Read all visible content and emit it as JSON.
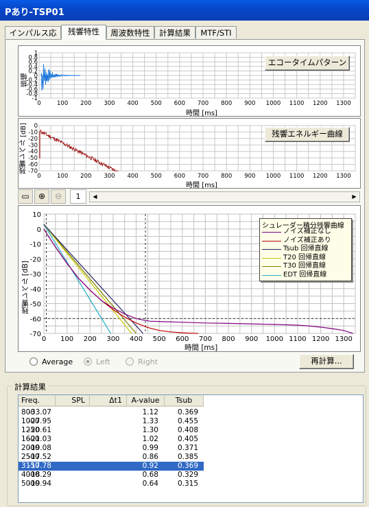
{
  "window": {
    "title": "Pあり-TSP01"
  },
  "tabs": [
    {
      "label": "インパルス応答",
      "active": false
    },
    {
      "label": "残響特性",
      "active": true
    },
    {
      "label": "周波数特性",
      "active": false
    },
    {
      "label": "計算結果",
      "active": false
    },
    {
      "label": "MTF/STI",
      "active": false
    }
  ],
  "echo_panel": {
    "button": "エコータイムパターン",
    "ylabel": "振幅",
    "xlabel": "時間 [ms]",
    "yticks": [
      "1",
      "0.8",
      "0.6",
      "0.4",
      "0.2",
      "0",
      "-0.2",
      "-0.4",
      "-0.6",
      "-0.8",
      "-1"
    ],
    "xticks": [
      "0",
      "100",
      "200",
      "300",
      "400",
      "500",
      "600",
      "700",
      "800",
      "900",
      "1000",
      "1100",
      "1200",
      "1300"
    ]
  },
  "energy_panel": {
    "button": "残響エネルギー曲線",
    "ylabel": "残響レベル [dB]",
    "xlabel": "時間 [ms]",
    "yticks": [
      "0",
      "-10",
      "-20",
      "-30",
      "-40",
      "-50",
      "-60",
      "-70"
    ],
    "xticks": [
      "0",
      "100",
      "200",
      "300",
      "400",
      "500",
      "600",
      "700",
      "800",
      "900",
      "1000",
      "1100",
      "1200",
      "1300"
    ]
  },
  "toolbar": {
    "page": "1"
  },
  "chart_data": {
    "type": "line",
    "ylabel": "残響レベル [dB]",
    "xlabel": "時間 [ms]",
    "xlim": [
      0,
      1350
    ],
    "ylim": [
      -70,
      10
    ],
    "xticks": [
      "0",
      "100",
      "200",
      "300",
      "400",
      "500",
      "600",
      "700",
      "800",
      "900",
      "1000",
      "1100",
      "1200",
      "1300"
    ],
    "yticks": [
      "10",
      "0",
      "-10",
      "-20",
      "-30",
      "-40",
      "-50",
      "-60",
      "-70"
    ],
    "grid": true,
    "legend_title": "シュレーダー積分残響曲線",
    "legend_position": "top-right",
    "series": [
      {
        "name": "ノイズ補正なし",
        "color": "#800080",
        "x": [
          0,
          20,
          50,
          100,
          150,
          200,
          250,
          300,
          350,
          400,
          430,
          460,
          500,
          600,
          700,
          800,
          900,
          1000,
          1100,
          1150,
          1200,
          1250,
          1300,
          1340
        ],
        "y": [
          0,
          -5,
          -12,
          -23,
          -33,
          -41,
          -48,
          -53,
          -57,
          -60,
          -61,
          -61.8,
          -62,
          -62.5,
          -63,
          -63.3,
          -63.6,
          -64,
          -64.5,
          -65,
          -65.8,
          -66.8,
          -68,
          -70
        ]
      },
      {
        "name": "ノイズ補正あり",
        "color": "#c00000",
        "x": [
          0,
          20,
          50,
          100,
          150,
          200,
          250,
          300,
          350,
          400,
          450,
          500,
          550,
          600,
          650,
          670
        ],
        "y": [
          0,
          -5,
          -12,
          -23,
          -33,
          -41,
          -48,
          -54,
          -59,
          -63,
          -66,
          -68,
          -69,
          -69.6,
          -69.9,
          -70
        ]
      },
      {
        "name": "Tsub 回帰直線",
        "color": "#202060",
        "x": [
          0,
          430
        ],
        "y": [
          3,
          -70
        ]
      },
      {
        "name": "T20 回帰直線",
        "color": "#c8c800",
        "x": [
          0,
          380
        ],
        "y": [
          3,
          -70
        ]
      },
      {
        "name": "T30 回帰直線",
        "color": "#808000",
        "x": [
          0,
          400
        ],
        "y": [
          3,
          -70
        ]
      },
      {
        "name": "EDT 回帰直線",
        "color": "#20b0c8",
        "x": [
          0,
          290
        ],
        "y": [
          3,
          -70
        ]
      }
    ],
    "reference_lines": {
      "horizontal_y": -60,
      "vertical_x": [
        10,
        440
      ]
    }
  },
  "recalc_button": "再計算...",
  "channel_options": [
    {
      "label": "Average",
      "selected": false,
      "enabled": true
    },
    {
      "label": "Left",
      "selected": true,
      "enabled": false
    },
    {
      "label": "Right",
      "selected": false,
      "enabled": false
    }
  ],
  "results": {
    "title": "計算結果",
    "columns": [
      "Freq.",
      "SPL",
      "Δt1",
      "A-value",
      "Tsub"
    ],
    "rows": [
      {
        "freq": "800",
        "spl": "-33.07",
        "dt1": "",
        "avalue": "1.12",
        "tsub": "0.369",
        "selected": false
      },
      {
        "freq": "1000",
        "spl": "-27.95",
        "dt1": "",
        "avalue": "1.33",
        "tsub": "0.455",
        "selected": false
      },
      {
        "freq": "1250",
        "spl": "-20.61",
        "dt1": "",
        "avalue": "1.30",
        "tsub": "0.408",
        "selected": false
      },
      {
        "freq": "1600",
        "spl": "-21.03",
        "dt1": "",
        "avalue": "1.02",
        "tsub": "0.405",
        "selected": false
      },
      {
        "freq": "2000",
        "spl": "-19.08",
        "dt1": "",
        "avalue": "0.99",
        "tsub": "0.371",
        "selected": false
      },
      {
        "freq": "2500",
        "spl": "-17.52",
        "dt1": "",
        "avalue": "0.86",
        "tsub": "0.385",
        "selected": false
      },
      {
        "freq": "3150",
        "spl": "-17.78",
        "dt1": "",
        "avalue": "0.92",
        "tsub": "0.369",
        "selected": true
      },
      {
        "freq": "4000",
        "spl": "-18.29",
        "dt1": "",
        "avalue": "0.68",
        "tsub": "0.329",
        "selected": false
      },
      {
        "freq": "5000",
        "spl": "-19.94",
        "dt1": "",
        "avalue": "0.64",
        "tsub": "0.315",
        "selected": false
      }
    ]
  }
}
